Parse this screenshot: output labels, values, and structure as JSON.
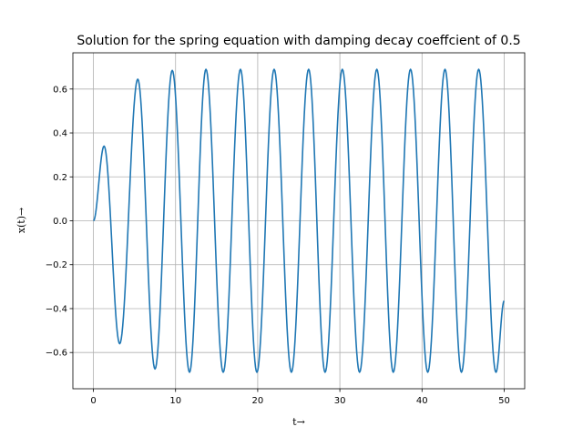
{
  "chart_data": {
    "type": "line",
    "title": "Solution for the spring equation with damping decay coeffcient of 0.5",
    "xlabel": "t→",
    "ylabel": "x(t)→",
    "xlim": [
      -2.5,
      52.5
    ],
    "ylim": [
      -0.765,
      0.765
    ],
    "grid": true,
    "legend": "none",
    "x_ticks": [
      0,
      10,
      20,
      30,
      40,
      50
    ],
    "x_tick_labels": [
      "0",
      "10",
      "20",
      "30",
      "40",
      "50"
    ],
    "y_ticks": [
      -0.6,
      -0.4,
      -0.2,
      0.0,
      0.2,
      0.4,
      0.6
    ],
    "y_tick_labels": [
      "−0.6",
      "−0.4",
      "−0.2",
      "0.0",
      "0.2",
      "0.4",
      "0.6"
    ],
    "series": [
      {
        "color": "#1f77b4",
        "x": [
          0.0,
          1.3,
          3.2,
          5.4,
          7.5,
          9.6,
          11.7,
          13.7,
          15.8,
          17.9,
          19.9,
          22.0,
          24.1,
          26.2,
          28.2,
          30.3,
          32.4,
          34.5,
          36.5,
          38.6,
          40.7,
          42.8,
          44.8,
          46.9,
          49.0,
          50.0
        ],
        "y": [
          0.0,
          0.34,
          -0.56,
          0.645,
          -0.675,
          0.685,
          -0.69,
          0.69,
          -0.69,
          0.69,
          -0.69,
          0.69,
          -0.69,
          0.69,
          -0.69,
          0.69,
          -0.69,
          0.69,
          -0.69,
          0.69,
          -0.69,
          0.69,
          -0.69,
          0.69,
          -0.69,
          -0.365
        ]
      }
    ]
  }
}
